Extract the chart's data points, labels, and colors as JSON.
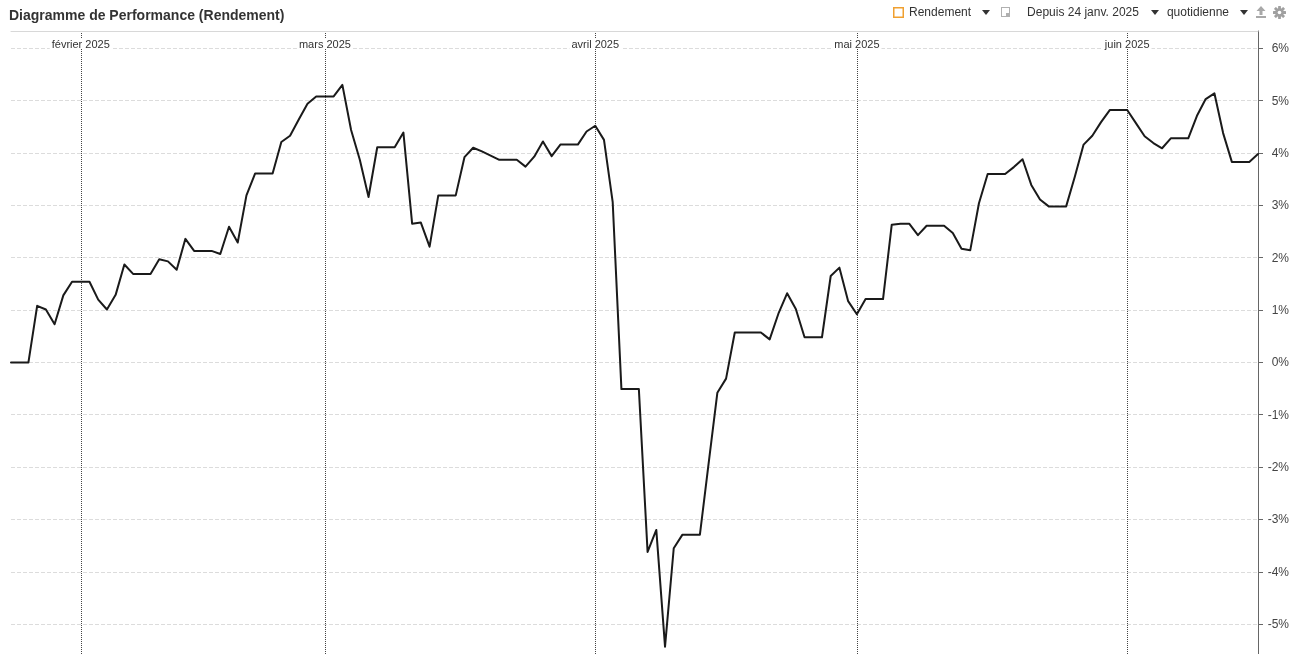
{
  "chart_data": {
    "type": "line",
    "title": "Diagramme de Performance (Rendement)",
    "annotations": [
      "Rendement",
      "Depuis 24 janv. 2025",
      "quotidienne"
    ],
    "x": [
      "2025-01-24",
      "2025-01-25",
      "2025-01-26",
      "2025-01-27",
      "2025-01-28",
      "2025-01-29",
      "2025-01-30",
      "2025-01-31",
      "2025-02-01",
      "2025-02-02",
      "2025-02-03",
      "2025-02-04",
      "2025-02-05",
      "2025-02-06",
      "2025-02-07",
      "2025-02-08",
      "2025-02-09",
      "2025-02-10",
      "2025-02-11",
      "2025-02-12",
      "2025-02-13",
      "2025-02-14",
      "2025-02-15",
      "2025-02-16",
      "2025-02-17",
      "2025-02-18",
      "2025-02-19",
      "2025-02-20",
      "2025-02-21",
      "2025-02-22",
      "2025-02-23",
      "2025-02-24",
      "2025-02-25",
      "2025-02-26",
      "2025-02-27",
      "2025-02-28",
      "2025-03-01",
      "2025-03-02",
      "2025-03-03",
      "2025-03-04",
      "2025-03-05",
      "2025-03-06",
      "2025-03-07",
      "2025-03-08",
      "2025-03-09",
      "2025-03-10",
      "2025-03-11",
      "2025-03-12",
      "2025-03-13",
      "2025-03-14",
      "2025-03-15",
      "2025-03-16",
      "2025-03-17",
      "2025-03-18",
      "2025-03-19",
      "2025-03-20",
      "2025-03-21",
      "2025-03-22",
      "2025-03-23",
      "2025-03-24",
      "2025-03-25",
      "2025-03-26",
      "2025-03-27",
      "2025-03-28",
      "2025-03-29",
      "2025-03-30",
      "2025-03-31",
      "2025-04-01",
      "2025-04-02",
      "2025-04-03",
      "2025-04-04",
      "2025-04-05",
      "2025-04-06",
      "2025-04-07",
      "2025-04-08",
      "2025-04-09",
      "2025-04-10",
      "2025-04-11",
      "2025-04-12",
      "2025-04-13",
      "2025-04-14",
      "2025-04-15",
      "2025-04-16",
      "2025-04-17",
      "2025-04-18",
      "2025-04-19",
      "2025-04-20",
      "2025-04-21",
      "2025-04-22",
      "2025-04-23",
      "2025-04-24",
      "2025-04-25",
      "2025-04-26",
      "2025-04-27",
      "2025-04-28",
      "2025-04-29",
      "2025-04-30",
      "2025-05-01",
      "2025-05-02",
      "2025-05-03",
      "2025-05-04",
      "2025-05-05",
      "2025-05-06",
      "2025-05-07",
      "2025-05-08",
      "2025-05-09",
      "2025-05-10",
      "2025-05-11",
      "2025-05-12",
      "2025-05-13",
      "2025-05-14",
      "2025-05-15",
      "2025-05-16",
      "2025-05-17",
      "2025-05-18",
      "2025-05-19",
      "2025-05-20",
      "2025-05-21",
      "2025-05-22",
      "2025-05-23",
      "2025-05-24",
      "2025-05-25",
      "2025-05-26",
      "2025-05-27",
      "2025-05-28",
      "2025-05-29",
      "2025-05-30",
      "2025-05-31",
      "2025-06-01",
      "2025-06-02",
      "2025-06-03",
      "2025-06-04",
      "2025-06-05",
      "2025-06-06",
      "2025-06-07",
      "2025-06-08",
      "2025-06-09",
      "2025-06-10",
      "2025-06-11",
      "2025-06-12",
      "2025-06-13",
      "2025-06-14",
      "2025-06-15",
      "2025-06-16"
    ],
    "series": [
      {
        "color": "#1a1a1a",
        "values": [
          0,
          0,
          0,
          1.08,
          1.01,
          0.73,
          1.28,
          1.54,
          1.54,
          1.54,
          1.2,
          1.01,
          1.29,
          1.87,
          1.69,
          1.69,
          1.69,
          1.97,
          1.93,
          1.77,
          2.36,
          2.13,
          2.13,
          2.13,
          2.07,
          2.59,
          2.29,
          3.19,
          3.61,
          3.61,
          3.61,
          4.21,
          4.33,
          4.64,
          4.94,
          5.08,
          5.08,
          5.08,
          5.3,
          4.44,
          3.87,
          3.16,
          4.11,
          4.11,
          4.11,
          4.39,
          2.65,
          2.67,
          2.21,
          3.19,
          3.19,
          3.19,
          3.92,
          4.1,
          4.03,
          3.95,
          3.87,
          3.87,
          3.87,
          3.74,
          3.93,
          4.22,
          3.94,
          4.16,
          4.16,
          4.16,
          4.41,
          4.52,
          4.25,
          3.06,
          -0.51,
          -0.51,
          -0.51,
          -3.62,
          -3.2,
          -5.43,
          -3.55,
          -3.29,
          -3.29,
          -3.29,
          -1.93,
          -0.58,
          -0.31,
          0.57,
          0.57,
          0.57,
          0.57,
          0.44,
          0.93,
          1.32,
          1.02,
          0.48,
          0.48,
          0.48,
          1.65,
          1.81,
          1.17,
          0.92,
          1.21,
          1.21,
          1.21,
          2.63,
          2.65,
          2.65,
          2.43,
          2.61,
          2.61,
          2.61,
          2.47,
          2.17,
          2.14,
          3.04,
          3.6,
          3.6,
          3.6,
          3.73,
          3.88,
          3.39,
          3.11,
          2.98,
          2.98,
          2.98,
          3.55,
          4.16,
          4.33,
          4.59,
          4.82,
          4.82,
          4.82,
          4.57,
          4.32,
          4.19,
          4.09,
          4.28,
          4.28,
          4.28,
          4.71,
          5.03,
          5.14,
          4.38,
          3.83,
          3.83,
          3.83,
          3.98
        ]
      }
    ],
    "xlim": [
      "2025-01-24",
      "2025-06-16"
    ],
    "xticks": [
      {
        "value": "2025-02-01",
        "label": "février 2025"
      },
      {
        "value": "2025-03-01",
        "label": "mars 2025"
      },
      {
        "value": "2025-04-01",
        "label": "avril 2025"
      },
      {
        "value": "2025-05-01",
        "label": "mai 2025"
      },
      {
        "value": "2025-06-01",
        "label": "juin 2025"
      }
    ],
    "ylim": [
      -5.57,
      6.33
    ],
    "yticks": [
      {
        "value": -5,
        "label": "-5%"
      },
      {
        "value": -4,
        "label": "-4%"
      },
      {
        "value": -3,
        "label": "-3%"
      },
      {
        "value": -2,
        "label": "-2%"
      },
      {
        "value": -1,
        "label": "-1%"
      },
      {
        "value": 0,
        "label": "0%"
      },
      {
        "value": 1,
        "label": "1%"
      },
      {
        "value": 2,
        "label": "2%"
      },
      {
        "value": 3,
        "label": "3%"
      },
      {
        "value": 4,
        "label": "4%"
      },
      {
        "value": 5,
        "label": "5%"
      },
      {
        "value": 6,
        "label": "6%"
      }
    ],
    "grid": true,
    "marker": "none",
    "line_style": "solid"
  }
}
